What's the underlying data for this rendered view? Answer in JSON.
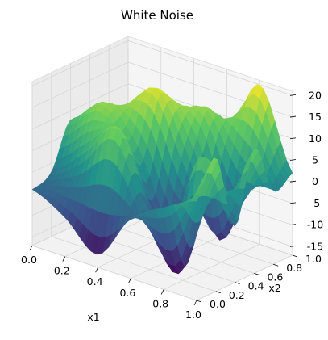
{
  "chart_data": {
    "type": "surface3d",
    "title": "White Noise",
    "xlabel": "x1",
    "ylabel": "x2",
    "zlabel": "",
    "xlim": [
      0.0,
      1.0
    ],
    "ylim": [
      0.0,
      1.0
    ],
    "zlim": [
      -17,
      21
    ],
    "xticks": [
      "0.0",
      "0.2",
      "0.4",
      "0.6",
      "0.8",
      "1.0"
    ],
    "yticks": [
      "0.0",
      "0.2",
      "0.4",
      "0.6",
      "0.8",
      "1.0"
    ],
    "zticks": [
      "-15",
      "-10",
      "-5",
      "0",
      "5",
      "10",
      "15",
      "20"
    ],
    "colormap": "viridis",
    "colors": [
      "#440154",
      "#3b528b",
      "#21918c",
      "#5ec962",
      "#fde725"
    ],
    "grid": true,
    "surface": {
      "x": [
        0.0,
        0.2,
        0.4,
        0.6,
        0.8,
        1.0
      ],
      "y": [
        0.0,
        0.2,
        0.4,
        0.6,
        0.8,
        1.0
      ],
      "z": [
        [
          -4,
          -8,
          -14,
          -3,
          2,
          6
        ],
        [
          -2,
          4,
          12,
          -6,
          -15,
          14
        ],
        [
          8,
          14,
          5,
          -10,
          10,
          -4
        ],
        [
          2,
          10,
          18,
          4,
          -12,
          12
        ],
        [
          -5,
          6,
          10,
          14,
          3,
          0
        ],
        [
          -3,
          -6,
          4,
          5,
          20,
          2
        ]
      ]
    }
  }
}
